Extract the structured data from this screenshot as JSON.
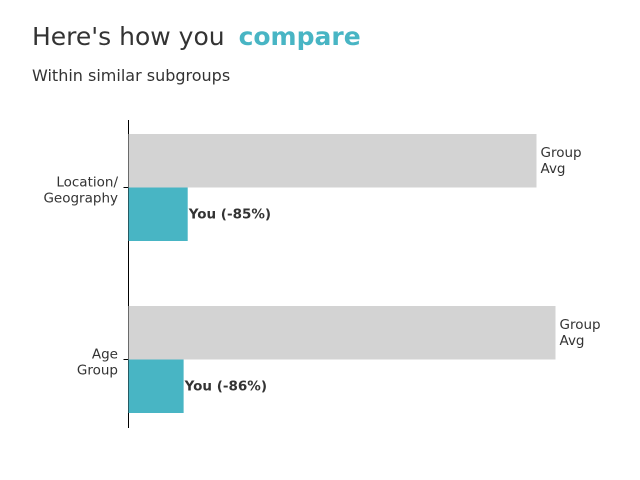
{
  "header": {
    "title_prefix": "Here's how you",
    "title_accent": "compare",
    "subtitle": "Within similar subgroups"
  },
  "colors": {
    "accent": "#48b5c4",
    "group_bar": "#d3d3d3",
    "text": "#333333"
  },
  "chart_data": {
    "type": "bar",
    "orientation": "horizontal",
    "categories": [
      [
        "Location/",
        "Geography"
      ],
      [
        "Age",
        "Group"
      ]
    ],
    "series": [
      {
        "key": "group",
        "values": [
          100,
          100
        ],
        "labels": [
          [
            "Group",
            "Avg"
          ],
          [
            "Group",
            "Avg"
          ]
        ]
      },
      {
        "key": "you",
        "values": [
          15,
          14
        ],
        "labels": [
          "You (-85%)",
          "You (-86%)"
        ]
      }
    ],
    "xlim": [
      0,
      100
    ],
    "grid": false
  }
}
